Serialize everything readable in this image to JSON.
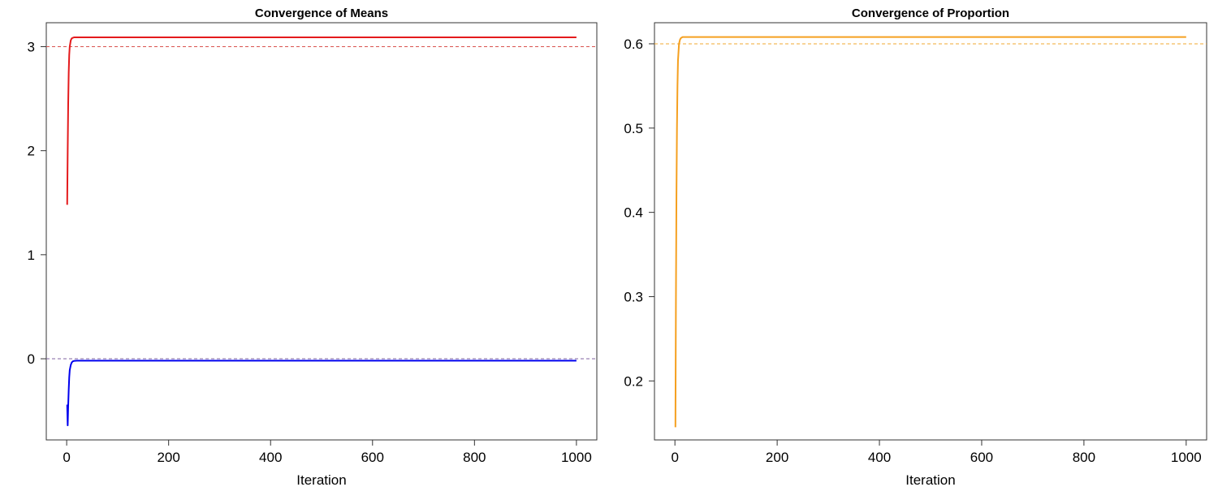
{
  "chart_data": [
    {
      "type": "line",
      "title": "Convergence of Means",
      "xlabel": "Iteration",
      "ylabel": "",
      "xlim": [
        -40,
        1040
      ],
      "ylim": [
        -0.78,
        3.23
      ],
      "xticks": [
        0,
        200,
        400,
        600,
        800,
        1000
      ],
      "xtick_labels": [
        "0",
        "200",
        "400",
        "600",
        "800",
        "1000"
      ],
      "yticks": [
        0,
        1,
        2,
        3
      ],
      "ytick_labels": [
        "0",
        "1",
        "2",
        "3"
      ],
      "grid": false,
      "legend": "none",
      "reference_lines": [
        {
          "y": 3,
          "color": "#d9534f",
          "style": "dashed"
        },
        {
          "y": 0,
          "color": "#8064a2",
          "style": "dashed"
        }
      ],
      "series": [
        {
          "color": "#e41a1c",
          "x": [
            1,
            2,
            3,
            4,
            5,
            6,
            8,
            10,
            12,
            15,
            20,
            30,
            50,
            100,
            200,
            300,
            400,
            500,
            600,
            700,
            800,
            900,
            1000
          ],
          "y": [
            1.48,
            2.0,
            2.45,
            2.75,
            2.92,
            3.0,
            3.06,
            3.08,
            3.085,
            3.09,
            3.09,
            3.09,
            3.09,
            3.09,
            3.09,
            3.09,
            3.09,
            3.09,
            3.09,
            3.09,
            3.09,
            3.09,
            3.09
          ]
        },
        {
          "color": "#0000ee",
          "x": [
            1,
            2,
            3,
            4,
            5,
            6,
            8,
            10,
            12,
            15,
            20,
            30,
            50,
            100,
            200,
            300,
            400,
            500,
            600,
            700,
            800,
            900,
            1000
          ],
          "y": [
            -0.44,
            -0.64,
            -0.45,
            -0.3,
            -0.18,
            -0.11,
            -0.06,
            -0.035,
            -0.025,
            -0.02,
            -0.018,
            -0.018,
            -0.018,
            -0.018,
            -0.018,
            -0.018,
            -0.018,
            -0.018,
            -0.018,
            -0.018,
            -0.018,
            -0.018,
            -0.018
          ]
        }
      ]
    },
    {
      "type": "line",
      "title": "Convergence of Proportion",
      "xlabel": "Iteration",
      "ylabel": "",
      "xlim": [
        -40,
        1040
      ],
      "ylim": [
        0.13,
        0.625
      ],
      "xticks": [
        0,
        200,
        400,
        600,
        800,
        1000
      ],
      "xtick_labels": [
        "0",
        "200",
        "400",
        "600",
        "800",
        "1000"
      ],
      "yticks": [
        0.2,
        0.3,
        0.4,
        0.5,
        0.6
      ],
      "ytick_labels": [
        "0.2",
        "0.3",
        "0.4",
        "0.5",
        "0.6"
      ],
      "grid": false,
      "legend": "none",
      "reference_lines": [
        {
          "y": 0.6,
          "color": "#f0a830",
          "style": "dashed"
        }
      ],
      "series": [
        {
          "color": "#f5a020",
          "x": [
            1,
            2,
            3,
            4,
            5,
            6,
            8,
            10,
            12,
            15,
            20,
            30,
            50,
            100,
            200,
            300,
            400,
            500,
            600,
            700,
            800,
            900,
            1000
          ],
          "y": [
            0.145,
            0.3,
            0.42,
            0.5,
            0.55,
            0.58,
            0.6,
            0.605,
            0.607,
            0.608,
            0.608,
            0.608,
            0.608,
            0.608,
            0.608,
            0.608,
            0.608,
            0.608,
            0.608,
            0.608,
            0.608,
            0.608,
            0.608
          ]
        }
      ]
    }
  ]
}
